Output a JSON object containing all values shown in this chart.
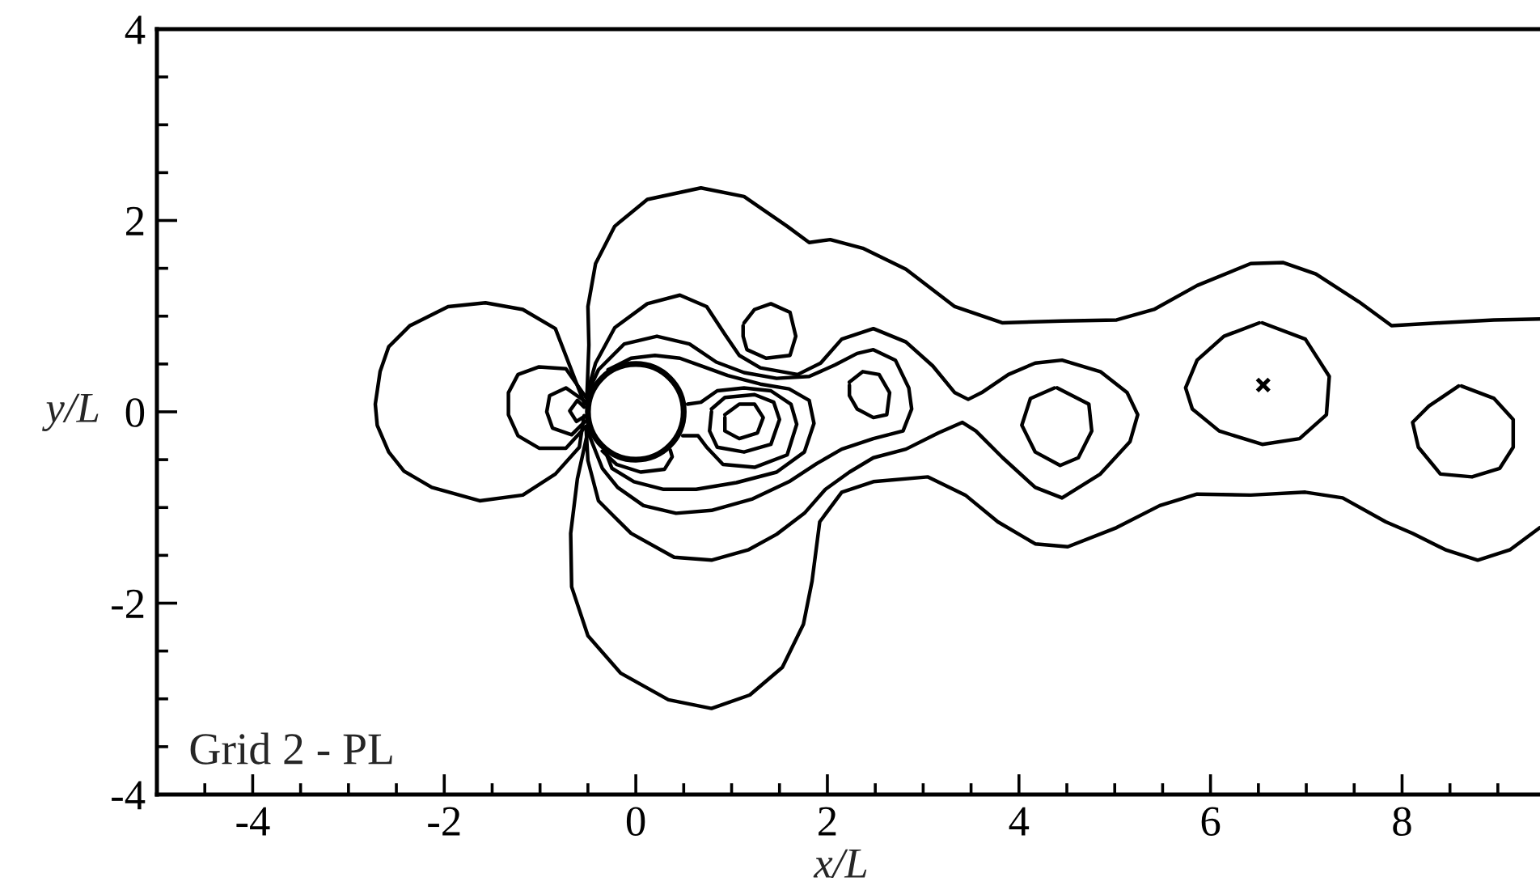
{
  "chart_data": {
    "type": "line",
    "xlabel": "x/L",
    "ylabel": "y/L",
    "annotations": [
      "Grid 2 - PL"
    ],
    "line_style": "solid",
    "xlim": [
      -5,
      9.44
    ],
    "ylim": [
      -4,
      4
    ],
    "xticks": [
      {
        "value": -4.5,
        "label": null
      },
      -4,
      {
        "value": -3.5,
        "label": null
      },
      {
        "value": -3,
        "label": null
      },
      {
        "value": -2.5,
        "label": null
      },
      -2,
      {
        "value": -1.5,
        "label": null
      },
      {
        "value": -1,
        "label": null
      },
      {
        "value": -0.5,
        "label": null
      },
      0,
      {
        "value": 0.5,
        "label": null
      },
      {
        "value": 1,
        "label": null
      },
      {
        "value": 1.5,
        "label": null
      },
      2,
      {
        "value": 2.5,
        "label": null
      },
      {
        "value": 3,
        "label": null
      },
      {
        "value": 3.5,
        "label": null
      },
      4,
      {
        "value": 4.5,
        "label": null
      },
      {
        "value": 5,
        "label": null
      },
      {
        "value": 5.5,
        "label": null
      },
      6,
      {
        "value": 6.5,
        "label": null
      },
      {
        "value": 7,
        "label": null
      },
      {
        "value": 7.5,
        "label": null
      },
      8,
      {
        "value": 8.5,
        "label": null
      },
      {
        "value": 9,
        "label": null
      }
    ],
    "yticks": [
      -4,
      {
        "value": -3.5,
        "label": null
      },
      {
        "value": -3,
        "label": null
      },
      {
        "value": -2.5,
        "label": null
      },
      -2,
      {
        "value": -1.5,
        "label": null
      },
      {
        "value": -1,
        "label": null
      },
      {
        "value": -0.5,
        "label": null
      },
      0,
      {
        "value": 0.5,
        "label": null
      },
      {
        "value": 1,
        "label": null
      },
      {
        "value": 1.5,
        "label": null
      },
      2,
      {
        "value": 2.5,
        "label": null
      },
      {
        "value": 3,
        "label": null
      },
      {
        "value": 3.5,
        "label": null
      },
      4
    ],
    "series": [
      {
        "color": "#000000",
        "x": [
          -0.535,
          -0.84,
          -1.18,
          -1.57,
          -1.96,
          -2.36,
          -2.58,
          -2.67,
          -2.72,
          -2.7,
          -2.58,
          -2.42,
          -2.13,
          -1.63,
          -1.18,
          -0.84,
          -0.59,
          -0.54
        ],
        "values": [
          0.08,
          0.87,
          1.07,
          1.14,
          1.1,
          0.9,
          0.68,
          0.42,
          0.08,
          -0.14,
          -0.42,
          -0.62,
          -0.79,
          -0.93,
          -0.87,
          -0.65,
          -0.37,
          -0.04
        ]
      },
      {
        "color": "#000000",
        "x": [
          -0.52,
          -0.73,
          -1.01,
          -1.23,
          -1.33,
          -1.33,
          -1.23,
          -1.01,
          -0.73,
          -0.52
        ],
        "values": [
          0.15,
          0.45,
          0.47,
          0.39,
          0.2,
          -0.03,
          -0.25,
          -0.38,
          -0.38,
          -0.15
        ]
      },
      {
        "color": "#000000",
        "x": [
          -0.53,
          -0.73,
          -0.9,
          -0.93,
          -0.87,
          -0.67,
          -0.53
        ],
        "values": [
          0.11,
          0.25,
          0.17,
          0.0,
          -0.17,
          -0.24,
          -0.1
        ]
      },
      {
        "color": "#000000",
        "x": [
          -0.54,
          -0.61,
          -0.69,
          -0.62,
          -0.54
        ],
        "values": [
          0.05,
          0.12,
          0.01,
          -0.1,
          -0.05
        ]
      },
      {
        "color": "#000000",
        "x": [
          9.44,
          8.96,
          8.4,
          7.89,
          7.55,
          7.1,
          6.76,
          6.42,
          5.86,
          5.41,
          5.02,
          4.45,
          3.83,
          3.33,
          2.82,
          2.37,
          2.03,
          1.81,
          1.58,
          1.13,
          0.68,
          0.12,
          -0.22,
          -0.42,
          -0.5,
          -0.49,
          -0.51,
          -0.5,
          -0.61,
          -0.68,
          -0.67,
          -0.5,
          -0.16,
          0.34,
          0.79,
          1.19,
          1.53,
          1.75,
          1.84,
          1.92,
          2.15,
          2.48,
          3.05,
          3.44,
          3.78,
          4.17,
          4.51,
          5.02,
          5.47,
          5.86,
          6.42,
          6.99,
          7.38,
          7.83,
          8.11,
          8.45,
          8.79,
          9.13,
          9.44
        ],
        "values": [
          0.97,
          0.96,
          0.93,
          0.9,
          1.15,
          1.44,
          1.56,
          1.55,
          1.32,
          1.07,
          0.96,
          0.95,
          0.93,
          1.1,
          1.49,
          1.71,
          1.8,
          1.77,
          1.94,
          2.25,
          2.34,
          2.22,
          1.94,
          1.55,
          1.1,
          0.7,
          0.18,
          -0.2,
          -0.7,
          -1.27,
          -1.83,
          -2.34,
          -2.73,
          -3.01,
          -3.1,
          -2.96,
          -2.67,
          -2.22,
          -1.77,
          -1.15,
          -0.84,
          -0.73,
          -0.68,
          -0.87,
          -1.15,
          -1.38,
          -1.41,
          -1.21,
          -0.98,
          -0.86,
          -0.87,
          -0.84,
          -0.9,
          -1.15,
          -1.27,
          -1.44,
          -1.55,
          -1.44,
          -1.21
        ]
      },
      {
        "color": "#000000",
        "x": [
          -0.52,
          -0.42,
          -0.22,
          0.12,
          0.46,
          0.74,
          0.93,
          1.08,
          1.3,
          1.69,
          1.93,
          2.15,
          2.48,
          2.82,
          3.1,
          3.33,
          3.47,
          3.61,
          3.89,
          4.17,
          4.45,
          4.85,
          5.13,
          5.24,
          5.16,
          4.85,
          4.45,
          4.17,
          3.83,
          3.55,
          3.41,
          3.16,
          2.82,
          2.48,
          2.23,
          1.98,
          1.76,
          1.47,
          1.18,
          0.79,
          0.4,
          -0.05,
          -0.39,
          -0.5,
          -0.52
        ],
        "values": [
          0.15,
          0.51,
          0.88,
          1.13,
          1.22,
          1.1,
          0.81,
          0.59,
          0.46,
          0.39,
          0.51,
          0.76,
          0.87,
          0.73,
          0.48,
          0.2,
          0.13,
          0.2,
          0.39,
          0.51,
          0.54,
          0.42,
          0.2,
          -0.03,
          -0.31,
          -0.65,
          -0.9,
          -0.79,
          -0.48,
          -0.2,
          -0.11,
          -0.22,
          -0.39,
          -0.48,
          -0.63,
          -0.81,
          -1.06,
          -1.28,
          -1.44,
          -1.55,
          -1.52,
          -1.27,
          -0.93,
          -0.51,
          -0.16
        ]
      },
      {
        "color": "#000000",
        "x": [
          -0.51,
          -0.39,
          -0.12,
          0.22,
          0.56,
          0.84,
          1.13,
          1.47,
          1.81,
          2.08,
          2.31,
          2.48,
          2.71,
          2.85,
          2.88,
          2.79,
          2.48,
          2.15,
          1.89,
          1.6,
          1.22,
          0.79,
          0.42,
          0.08,
          -0.19,
          -0.35,
          -0.5
        ],
        "values": [
          0.18,
          0.44,
          0.71,
          0.79,
          0.71,
          0.52,
          0.41,
          0.35,
          0.37,
          0.49,
          0.61,
          0.65,
          0.54,
          0.25,
          0.03,
          -0.2,
          -0.28,
          -0.39,
          -0.54,
          -0.73,
          -0.91,
          -1.03,
          -1.06,
          -0.98,
          -0.79,
          -0.59,
          -0.21
        ]
      },
      {
        "color": "#000000",
        "x": [
          -0.29,
          -0.05,
          0.2,
          0.46,
          0.71,
          0.96,
          1.3,
          1.6,
          1.81,
          1.86,
          1.76,
          1.47,
          1.05,
          0.63,
          0.29,
          -0.02,
          -0.25,
          -0.3
        ],
        "values": [
          0.44,
          0.56,
          0.59,
          0.56,
          0.47,
          0.38,
          0.29,
          0.24,
          0.12,
          -0.12,
          -0.42,
          -0.63,
          -0.74,
          -0.81,
          -0.81,
          -0.73,
          -0.59,
          -0.46
        ]
      },
      {
        "color": "#000000",
        "x": [
          1.13,
          1.24,
          1.41,
          1.61,
          1.67,
          1.61,
          1.36,
          1.16,
          1.12,
          1.12
        ],
        "values": [
          0.93,
          1.07,
          1.13,
          1.04,
          0.79,
          0.59,
          0.56,
          0.65,
          0.79,
          0.9
        ]
      },
      {
        "color": "#000000",
        "x": [
          2.23,
          2.37,
          2.54,
          2.65,
          2.62,
          2.48,
          2.31,
          2.23,
          2.23
        ],
        "values": [
          0.31,
          0.42,
          0.39,
          0.2,
          -0.03,
          -0.06,
          0.03,
          0.17,
          0.28
        ]
      },
      {
        "color": "#000000",
        "x": [
          0.93,
          1.08,
          1.24,
          1.33,
          1.27,
          1.08,
          0.93,
          0.93
        ],
        "values": [
          -0.03,
          0.08,
          0.08,
          -0.06,
          -0.22,
          -0.28,
          -0.2,
          -0.06
        ]
      },
      {
        "color": "#000000",
        "x": [
          0.79,
          0.93,
          1.24,
          1.44,
          1.5,
          1.41,
          1.13,
          0.85,
          0.77,
          0.79
        ],
        "values": [
          0.03,
          0.15,
          0.18,
          0.1,
          -0.08,
          -0.34,
          -0.42,
          -0.37,
          -0.2,
          0.0
        ]
      },
      {
        "color": "#000000",
        "x": [
          0.54,
          0.68,
          0.85,
          1.13,
          1.41,
          1.62,
          1.68,
          1.58,
          1.24,
          0.91,
          0.74,
          0.65,
          0.49
        ],
        "values": [
          0.08,
          0.1,
          0.22,
          0.25,
          0.22,
          0.08,
          -0.13,
          -0.45,
          -0.58,
          -0.55,
          -0.37,
          -0.25,
          -0.25
        ]
      },
      {
        "color": "#000000",
        "x": [
          -0.35,
          -0.2,
          0.05,
          0.3,
          0.38,
          0.36
        ],
        "values": [
          -0.41,
          -0.55,
          -0.63,
          -0.6,
          -0.47,
          -0.4
        ]
      },
      {
        "color": "#000000",
        "x": [
          4.4,
          4.73,
          4.76,
          4.62,
          4.43,
          4.17,
          4.03,
          4.12,
          4.37
        ],
        "values": [
          0.25,
          0.08,
          -0.2,
          -0.48,
          -0.56,
          -0.42,
          -0.14,
          0.14,
          0.25
        ]
      },
      {
        "color": "#000000",
        "x": [
          6.54,
          6.99,
          7.24,
          7.21,
          6.93,
          6.54,
          6.09,
          5.81,
          5.74,
          5.86,
          6.14,
          6.51
        ],
        "values": [
          0.93,
          0.76,
          0.37,
          -0.03,
          -0.28,
          -0.34,
          -0.2,
          0.03,
          0.25,
          0.54,
          0.79,
          0.93
        ]
      },
      {
        "color": "#000000",
        "x": [
          8.62,
          8.96,
          9.16,
          9.16,
          9.02,
          8.73,
          8.4,
          8.17,
          8.11,
          8.28,
          8.59
        ],
        "values": [
          0.27,
          0.14,
          -0.08,
          -0.37,
          -0.59,
          -0.68,
          -0.65,
          -0.37,
          -0.11,
          0.06,
          0.27
        ]
      },
      {
        "type": "scatter",
        "marker": "cross",
        "color": "#000000",
        "x": [
          6.55
        ],
        "values": [
          0.28
        ]
      }
    ]
  }
}
